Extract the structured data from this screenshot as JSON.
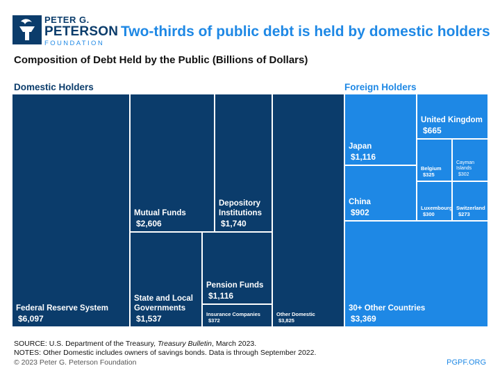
{
  "logo": {
    "line1": "PETER G.",
    "line2": "PETERSON",
    "line3": "FOUNDATION",
    "icon": "torch-icon"
  },
  "headline": "Two-thirds of public debt is held by domestic holders",
  "chart_data": {
    "type": "treemap",
    "title": "Composition of Debt Held by the Public (Billions of Dollars)",
    "groups": [
      {
        "name": "Domestic Holders",
        "color": "#0b3c6b",
        "items": [
          {
            "label": "Federal Reserve System",
            "value": 6097,
            "value_label": "$6,097"
          },
          {
            "label": "Mutual Funds",
            "value": 2606,
            "value_label": "$2,606"
          },
          {
            "label": "State and Local Governments",
            "value": 1537,
            "value_label": "$1,537"
          },
          {
            "label": "Depository Institutions",
            "value": 1740,
            "value_label": "$1,740"
          },
          {
            "label": "Pension Funds",
            "value": 1116,
            "value_label": "$1,116"
          },
          {
            "label": "Insurance Companies",
            "value": 372,
            "value_label": "$372"
          },
          {
            "label": "Other Domestic",
            "value": 3825,
            "value_label": "$3,825"
          }
        ]
      },
      {
        "name": "Foreign Holders",
        "color": "#1e88e5",
        "items": [
          {
            "label": "Japan",
            "value": 1116,
            "value_label": "$1,116"
          },
          {
            "label": "China",
            "value": 902,
            "value_label": "$902"
          },
          {
            "label": "30+ Other Countries",
            "value": 3369,
            "value_label": "$3,369"
          },
          {
            "label": "United Kingdom",
            "value": 665,
            "value_label": "$665"
          },
          {
            "label": "Belgium",
            "value": 325,
            "value_label": "$325"
          },
          {
            "label": "Cayman Islands",
            "value": 302,
            "value_label": "$302"
          },
          {
            "label": "Luxembourg",
            "value": 300,
            "value_label": "$300"
          },
          {
            "label": "Switzerland",
            "value": 273,
            "value_label": "$273"
          }
        ]
      }
    ]
  },
  "footer": {
    "source_prefix": "SOURCE: U.S. Department of the Treasury, ",
    "source_pub": "Treasury Bulletin",
    "source_suffix": ", March 2023.",
    "notes": "NOTES: Other Domestic includes owners of savings bonds. Data is through September 2022.",
    "copyright": "© 2023 Peter G. Peterson Foundation",
    "site": "PGPF.ORG"
  }
}
